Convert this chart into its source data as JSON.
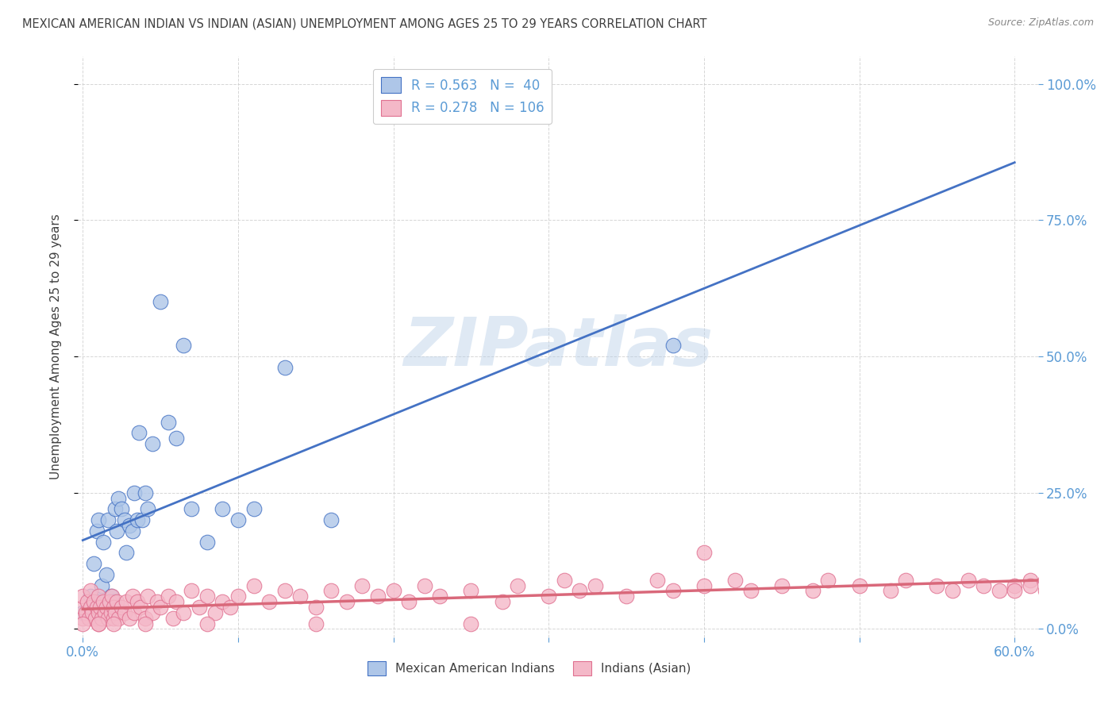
{
  "title": "MEXICAN AMERICAN INDIAN VS INDIAN (ASIAN) UNEMPLOYMENT AMONG AGES 25 TO 29 YEARS CORRELATION CHART",
  "source": "Source: ZipAtlas.com",
  "ylabel": "Unemployment Among Ages 25 to 29 years",
  "watermark": "ZIPatlas",
  "blue_face_color": "#aec6e8",
  "blue_edge_color": "#4472c4",
  "pink_face_color": "#f4b8c8",
  "pink_edge_color": "#e07090",
  "blue_line_color": "#4472c4",
  "pink_line_color": "#d9687a",
  "background_color": "#ffffff",
  "grid_color": "#cccccc",
  "title_color": "#404040",
  "axis_tick_color": "#5b9bd5",
  "ylabel_color": "#404040",
  "source_color": "#888888",
  "legend_text_color": "#5b9bd5",
  "bottom_legend_color": "#404040",
  "blue_R": 0.563,
  "blue_N": 40,
  "pink_R": 0.278,
  "pink_N": 106,
  "xlim": [
    -0.003,
    0.615
  ],
  "ylim": [
    -0.015,
    1.05
  ],
  "xtick_vals": [
    0.0,
    0.1,
    0.2,
    0.3,
    0.4,
    0.5,
    0.6
  ],
  "xtick_labels": [
    "0.0%",
    "",
    "",
    "",
    "",
    "",
    "60.0%"
  ],
  "ytick_vals": [
    0.0,
    0.25,
    0.5,
    0.75,
    1.0
  ],
  "ytick_labels": [
    "0.0%",
    "25.0%",
    "50.0%",
    "75.0%",
    "100.0%"
  ],
  "blue_x": [
    0.0,
    0.005,
    0.007,
    0.008,
    0.009,
    0.01,
    0.01,
    0.012,
    0.013,
    0.015,
    0.016,
    0.018,
    0.02,
    0.021,
    0.022,
    0.023,
    0.025,
    0.027,
    0.028,
    0.03,
    0.032,
    0.033,
    0.035,
    0.036,
    0.038,
    0.04,
    0.042,
    0.045,
    0.05,
    0.055,
    0.06,
    0.065,
    0.07,
    0.08,
    0.09,
    0.1,
    0.11,
    0.13,
    0.16,
    0.38
  ],
  "blue_y": [
    0.03,
    0.06,
    0.12,
    0.04,
    0.18,
    0.05,
    0.2,
    0.08,
    0.16,
    0.1,
    0.2,
    0.06,
    0.05,
    0.22,
    0.18,
    0.24,
    0.22,
    0.2,
    0.14,
    0.19,
    0.18,
    0.25,
    0.2,
    0.36,
    0.2,
    0.25,
    0.22,
    0.34,
    0.6,
    0.38,
    0.35,
    0.52,
    0.22,
    0.16,
    0.22,
    0.2,
    0.22,
    0.48,
    0.2,
    0.52
  ],
  "pink_x": [
    0.0,
    0.0,
    0.0,
    0.002,
    0.003,
    0.004,
    0.005,
    0.005,
    0.006,
    0.007,
    0.008,
    0.009,
    0.01,
    0.01,
    0.01,
    0.011,
    0.012,
    0.013,
    0.014,
    0.015,
    0.016,
    0.017,
    0.018,
    0.019,
    0.02,
    0.02,
    0.021,
    0.022,
    0.023,
    0.025,
    0.027,
    0.028,
    0.03,
    0.032,
    0.033,
    0.035,
    0.037,
    0.04,
    0.042,
    0.045,
    0.048,
    0.05,
    0.055,
    0.058,
    0.06,
    0.065,
    0.07,
    0.075,
    0.08,
    0.085,
    0.09,
    0.095,
    0.1,
    0.11,
    0.12,
    0.13,
    0.14,
    0.15,
    0.16,
    0.17,
    0.18,
    0.19,
    0.2,
    0.21,
    0.22,
    0.23,
    0.25,
    0.27,
    0.28,
    0.3,
    0.31,
    0.32,
    0.33,
    0.35,
    0.37,
    0.38,
    0.4,
    0.42,
    0.43,
    0.45,
    0.47,
    0.48,
    0.5,
    0.52,
    0.53,
    0.55,
    0.56,
    0.57,
    0.58,
    0.59,
    0.6,
    0.6,
    0.61,
    0.61,
    0.62,
    0.62,
    0.63,
    0.63,
    0.0,
    0.01,
    0.02,
    0.04,
    0.08,
    0.15,
    0.25,
    0.4
  ],
  "pink_y": [
    0.02,
    0.04,
    0.06,
    0.03,
    0.05,
    0.02,
    0.04,
    0.07,
    0.03,
    0.05,
    0.02,
    0.04,
    0.01,
    0.03,
    0.06,
    0.04,
    0.02,
    0.05,
    0.03,
    0.04,
    0.02,
    0.05,
    0.03,
    0.06,
    0.02,
    0.04,
    0.03,
    0.05,
    0.02,
    0.04,
    0.03,
    0.05,
    0.02,
    0.06,
    0.03,
    0.05,
    0.04,
    0.02,
    0.06,
    0.03,
    0.05,
    0.04,
    0.06,
    0.02,
    0.05,
    0.03,
    0.07,
    0.04,
    0.06,
    0.03,
    0.05,
    0.04,
    0.06,
    0.08,
    0.05,
    0.07,
    0.06,
    0.04,
    0.07,
    0.05,
    0.08,
    0.06,
    0.07,
    0.05,
    0.08,
    0.06,
    0.07,
    0.05,
    0.08,
    0.06,
    0.09,
    0.07,
    0.08,
    0.06,
    0.09,
    0.07,
    0.08,
    0.09,
    0.07,
    0.08,
    0.07,
    0.09,
    0.08,
    0.07,
    0.09,
    0.08,
    0.07,
    0.09,
    0.08,
    0.07,
    0.08,
    0.07,
    0.09,
    0.08,
    0.07,
    0.09,
    0.08,
    0.07,
    0.01,
    0.01,
    0.01,
    0.01,
    0.01,
    0.01,
    0.01,
    0.14
  ]
}
